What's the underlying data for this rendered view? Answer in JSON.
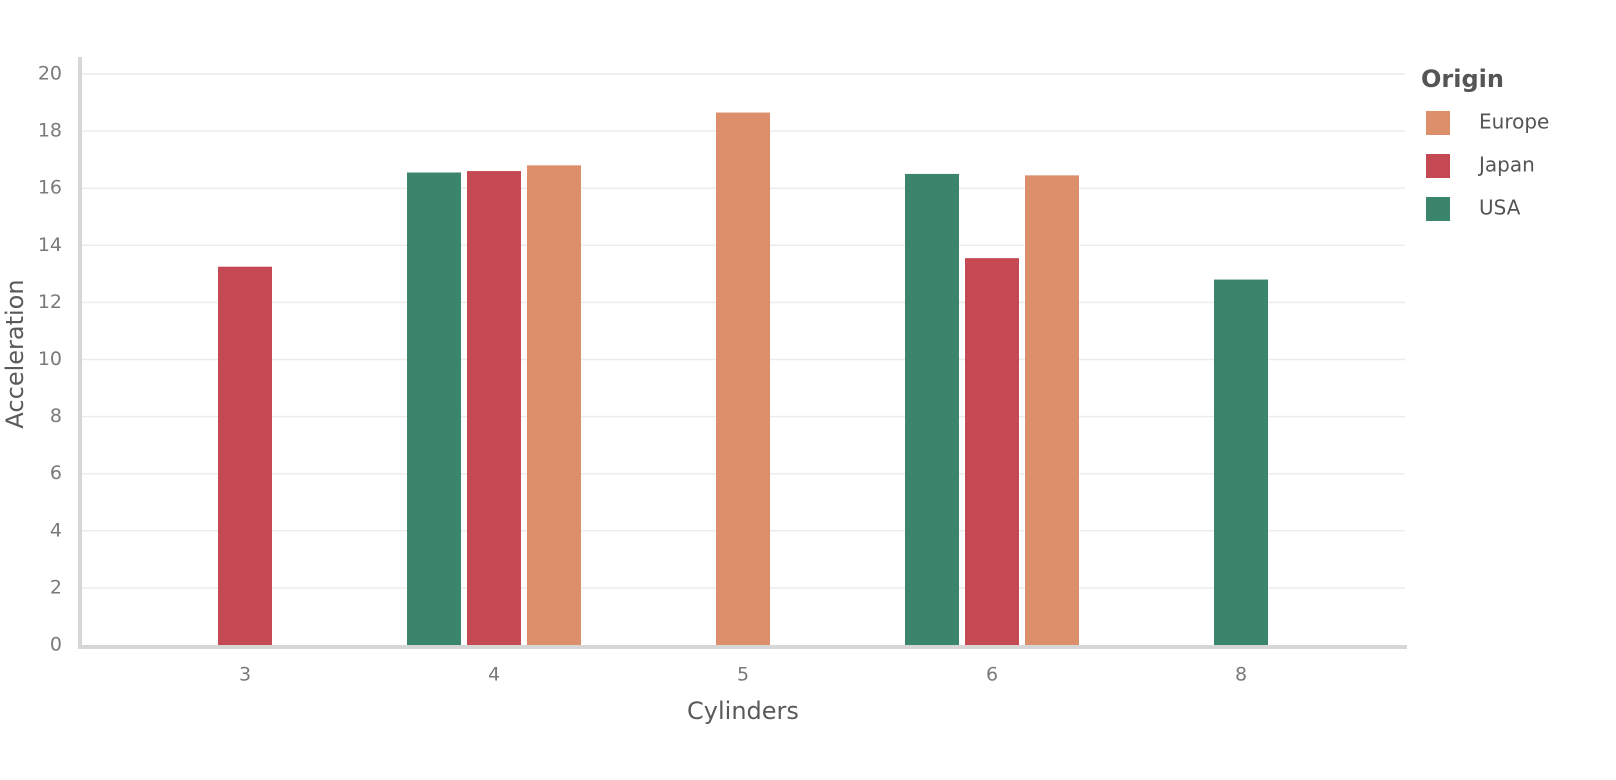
{
  "chart_data": {
    "type": "bar",
    "title": "",
    "xlabel": "Cylinders",
    "ylabel": "Acceleration",
    "categories": [
      "3",
      "4",
      "5",
      "6",
      "8"
    ],
    "ylim": [
      0,
      20
    ],
    "yticks": [
      "0",
      "2",
      "4",
      "6",
      "8",
      "10",
      "12",
      "14",
      "16",
      "18",
      "20"
    ],
    "grid": true,
    "legend_title": "Origin",
    "legend_position": "right",
    "series": [
      {
        "name": "USA",
        "color": "#3b856c",
        "values": [
          null,
          16.55,
          null,
          16.5,
          12.8
        ]
      },
      {
        "name": "Japan",
        "color": "#c44953",
        "values": [
          13.25,
          16.6,
          null,
          13.55,
          null
        ]
      },
      {
        "name": "Europe",
        "color": "#dc8f6a",
        "values": [
          null,
          16.8,
          18.65,
          16.45,
          null
        ]
      }
    ],
    "legend_order": [
      "Europe",
      "Japan",
      "USA"
    ]
  }
}
